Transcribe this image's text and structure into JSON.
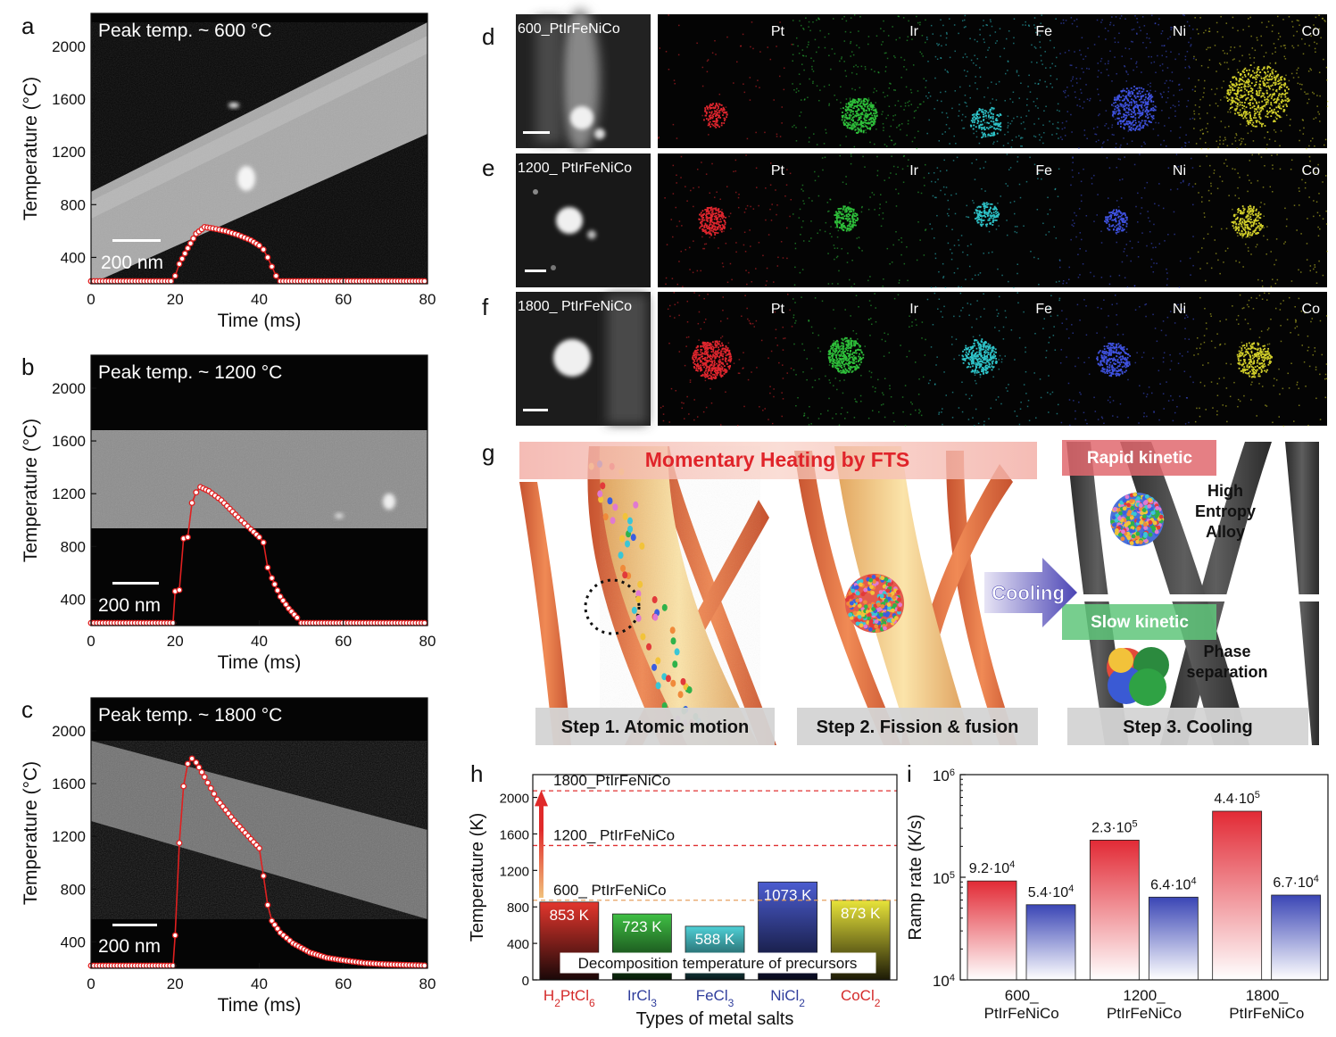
{
  "panel_letters": [
    "a",
    "b",
    "c",
    "d",
    "e",
    "f",
    "g",
    "h",
    "i"
  ],
  "temp_panels": {
    "ylabel": "Temperature (°C)",
    "xlabel": "Time (ms)",
    "scale_bar": "200 nm",
    "panels": [
      {
        "title": "Peak temp. ~ 600 °C"
      },
      {
        "title": "Peak temp. ~ 1200 °C"
      },
      {
        "title": "Peak temp. ~ 1800 °C"
      }
    ]
  },
  "eds_panels": {
    "elements": [
      "Pt",
      "Ir",
      "Fe",
      "Ni",
      "Co"
    ],
    "element_colors": [
      "#e0262e",
      "#2ebf3a",
      "#2ec3c8",
      "#3f52e0",
      "#d2cf2a"
    ],
    "rows": [
      {
        "sample": "600_PtIrFeNiCo"
      },
      {
        "sample": "1200_ PtIrFeNiCo"
      },
      {
        "sample": "1800_ PtIrFeNiCo"
      }
    ]
  },
  "schematic": {
    "banner": "Momentary Heating by FTS",
    "cooling": "Cooling",
    "rapid": "Rapid kinetic",
    "slow": "Slow kinetic",
    "hea": [
      "High",
      "Entropy",
      "Alloy"
    ],
    "phase": [
      "Phase",
      "separation"
    ],
    "steps": [
      "Step 1. Atomic motion",
      "Step 2. Fission & fusion",
      "Step 3. Cooling"
    ]
  },
  "chart_data": [
    {
      "type": "line",
      "panel": "a",
      "title": "Peak temp. ~ 600 °C",
      "xlabel": "Time (ms)",
      "ylabel": "Temperature (°C)",
      "xlim": [
        0,
        80
      ],
      "ylim": [
        200,
        2250
      ],
      "xticks": [
        0,
        20,
        40,
        60,
        80
      ],
      "yticks": [
        400,
        800,
        1200,
        1600,
        2000
      ],
      "x": [
        0,
        19,
        20,
        21,
        23,
        25,
        27,
        29,
        32,
        35,
        38,
        40,
        41,
        42,
        43,
        44,
        45,
        80
      ],
      "y": [
        220,
        220,
        260,
        350,
        470,
        580,
        630,
        620,
        600,
        570,
        530,
        490,
        460,
        400,
        330,
        260,
        220,
        220
      ]
    },
    {
      "type": "line",
      "panel": "b",
      "title": "Peak temp. ~ 1200 °C",
      "xlabel": "Time (ms)",
      "ylabel": "Temperature (°C)",
      "xlim": [
        0,
        80
      ],
      "ylim": [
        200,
        2250
      ],
      "xticks": [
        0,
        20,
        40,
        60,
        80
      ],
      "yticks": [
        400,
        800,
        1200,
        1600,
        2000
      ],
      "x": [
        0,
        19.5,
        20,
        21,
        22,
        23,
        24,
        25,
        26,
        28,
        31,
        35,
        38,
        40,
        41,
        42,
        43,
        45,
        47,
        49,
        50,
        80
      ],
      "y": [
        220,
        220,
        460,
        470,
        860,
        870,
        1130,
        1210,
        1250,
        1220,
        1150,
        1020,
        930,
        870,
        830,
        640,
        560,
        420,
        330,
        260,
        220,
        220
      ]
    },
    {
      "type": "line",
      "panel": "c",
      "title": "Peak temp. ~ 1800 °C",
      "xlabel": "Time (ms)",
      "ylabel": "Temperature (°C)",
      "xlim": [
        0,
        80
      ],
      "ylim": [
        200,
        2250
      ],
      "xticks": [
        0,
        20,
        40,
        60,
        80
      ],
      "yticks": [
        400,
        800,
        1200,
        1600,
        2000
      ],
      "x": [
        0,
        19.5,
        20,
        21,
        22,
        23,
        24,
        25,
        27,
        30,
        34,
        38,
        40,
        41,
        42,
        43,
        45,
        48,
        52,
        56,
        60,
        65,
        70,
        75,
        80
      ],
      "y": [
        220,
        220,
        450,
        1150,
        1580,
        1750,
        1790,
        1760,
        1650,
        1480,
        1320,
        1180,
        1110,
        900,
        680,
        560,
        470,
        390,
        320,
        280,
        260,
        240,
        230,
        225,
        220
      ]
    },
    {
      "type": "bar",
      "panel": "h",
      "xlabel": "Types of metal salts",
      "ylabel": "Temperature (K)",
      "ylim": [
        0,
        2250
      ],
      "yticks": [
        0,
        400,
        800,
        1200,
        1600,
        2000
      ],
      "categories": [
        "H2PtCl6",
        "IrCl3",
        "FeCl3",
        "NiCl2",
        "CoCl2"
      ],
      "category_labels": [
        {
          "base": "H",
          "sub": "2",
          "base2": "PtCl",
          "sub2": "6"
        },
        {
          "base": "IrCl",
          "sub": "3",
          "base2": "",
          "sub2": ""
        },
        {
          "base": "FeCl",
          "sub": "3",
          "base2": "",
          "sub2": ""
        },
        {
          "base": "NiCl",
          "sub": "2",
          "base2": "",
          "sub2": ""
        },
        {
          "base": "CoCl",
          "sub": "2",
          "base2": "",
          "sub2": ""
        }
      ],
      "values": [
        853,
        723,
        588,
        1073,
        873
      ],
      "value_labels": [
        "853 K",
        "723 K",
        "588 K",
        "1073 K",
        "873 K"
      ],
      "bar_colors": [
        "#d42a2a",
        "#39b53d",
        "#45c6cc",
        "#3d4fbf",
        "#d9d630"
      ],
      "label_colors": [
        "#d42a2a",
        "#2f3d9c",
        "#2f3d9c",
        "#2f3d9c",
        "#d42a2a"
      ],
      "reference_lines": [
        {
          "label": "1800_PtIrFeNiCo",
          "value": 2073
        },
        {
          "label": "1200_  PtIrFeNiCo",
          "value": 1473
        },
        {
          "label": "600_  PtIrFeNiCo",
          "value": 873
        }
      ],
      "annotation": "Decomposition  temperature  of precursors"
    },
    {
      "type": "bar",
      "panel": "i",
      "ylabel": "Ramp rate (K/s)",
      "yscale": "log",
      "ylim": [
        10000,
        1000000
      ],
      "categories": [
        "600_ PtIrFeNiCo",
        "1200_ PtIrFeNiCo",
        "1800_ PtIrFeNiCo"
      ],
      "category_lines": [
        [
          "600_",
          "PtIrFeNiCo"
        ],
        [
          "1200_",
          "PtIrFeNiCo"
        ],
        [
          "1800_",
          "PtIrFeNiCo"
        ]
      ],
      "series": [
        {
          "color": "#e22a35",
          "values": [
            92000,
            230000,
            440000
          ],
          "labels": [
            "9.2·10",
            "2.3·10",
            "4.4·10"
          ],
          "exponents": [
            "4",
            "5",
            "5"
          ]
        },
        {
          "color": "#3a45b5",
          "values": [
            54000,
            64000,
            67000
          ],
          "labels": [
            "5.4·10",
            "6.4·10",
            "6.7·10"
          ],
          "exponents": [
            "4",
            "4",
            "4"
          ]
        }
      ],
      "ytick_labels": [
        {
          "base": "10",
          "exp": "4"
        },
        {
          "base": "10",
          "exp": "5"
        },
        {
          "base": "10",
          "exp": "6"
        }
      ]
    }
  ]
}
